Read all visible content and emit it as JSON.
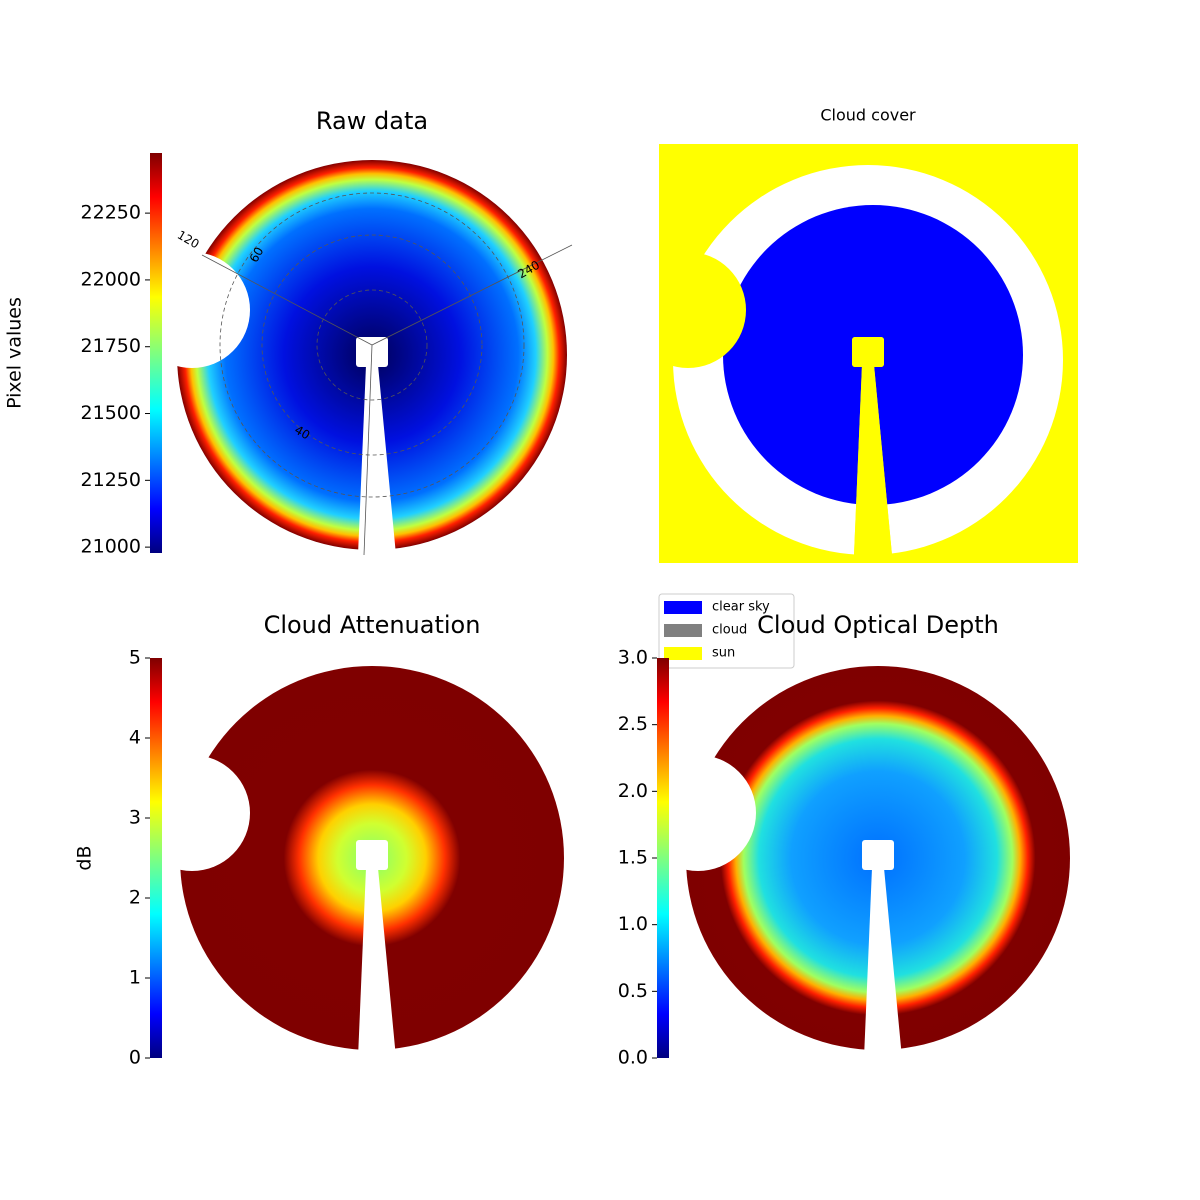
{
  "chart_data": [
    {
      "type": "heatmap",
      "title": "Raw data",
      "colormap": "jet",
      "colorbar_label": "Pixel values",
      "clim": [
        20978,
        22475
      ],
      "cticks": [
        21000,
        21250,
        21500,
        21750,
        22000,
        22250
      ],
      "polar_labels": [
        "120",
        "240",
        "60",
        "40"
      ]
    },
    {
      "type": "categorical",
      "title": "Cloud cover",
      "series": [
        {
          "name": "clear sky",
          "color": "#0000ff"
        },
        {
          "name": "cloud",
          "color": "#808080"
        },
        {
          "name": "sun",
          "color": "#ffff00"
        }
      ]
    },
    {
      "type": "heatmap",
      "title": "Cloud Attenuation",
      "colormap": "jet",
      "colorbar_label": "dB",
      "clim": [
        0,
        5
      ],
      "cticks": [
        0,
        1,
        2,
        3,
        4,
        5
      ]
    },
    {
      "type": "heatmap",
      "title": "Cloud Optical Depth",
      "colormap": "jet",
      "clim": [
        0,
        3
      ],
      "cticks": [
        {
          "value": 0,
          "label": "0.0"
        },
        {
          "value": 0.5,
          "label": "0.5"
        },
        {
          "value": 1,
          "label": "1.0"
        },
        {
          "value": 1.5,
          "label": "1.5"
        },
        {
          "value": 2,
          "label": "2.0"
        },
        {
          "value": 2.5,
          "label": "2.5"
        },
        {
          "value": 3,
          "label": "3.0"
        }
      ]
    }
  ]
}
